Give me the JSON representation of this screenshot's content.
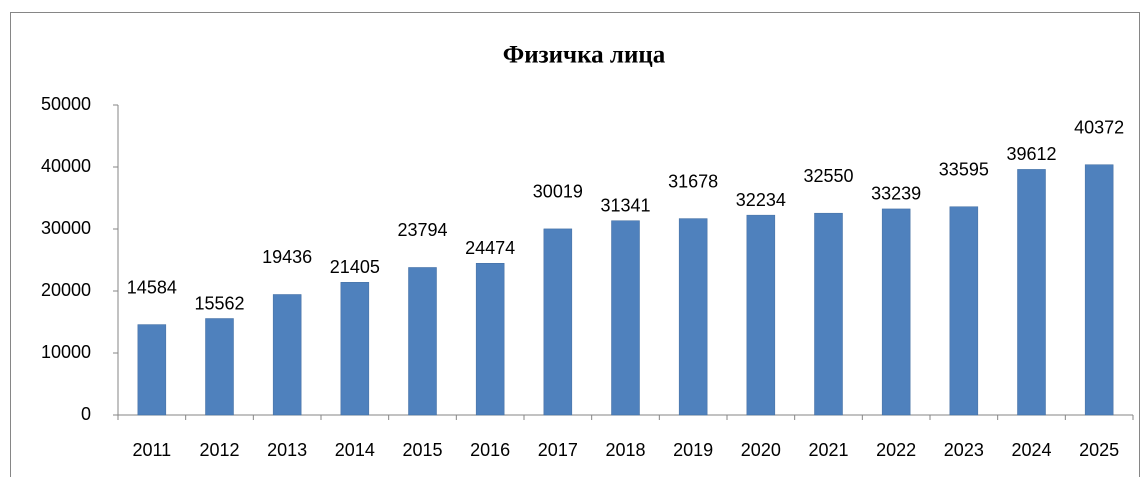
{
  "chart_data": {
    "type": "bar",
    "title": "Физичка лица",
    "categories": [
      "2011",
      "2012",
      "2013",
      "2014",
      "2015",
      "2016",
      "2017",
      "2018",
      "2019",
      "2020",
      "2021",
      "2022",
      "2023",
      "2024",
      "2025"
    ],
    "values": [
      14584,
      15562,
      19436,
      21405,
      23794,
      24474,
      30019,
      31341,
      31678,
      32234,
      32550,
      33239,
      33595,
      39612,
      40372
    ],
    "color": "#4f81bd",
    "ylim": [
      0,
      50000
    ],
    "yticks": [
      0,
      10000,
      20000,
      30000,
      40000,
      50000
    ],
    "grid": false
  }
}
